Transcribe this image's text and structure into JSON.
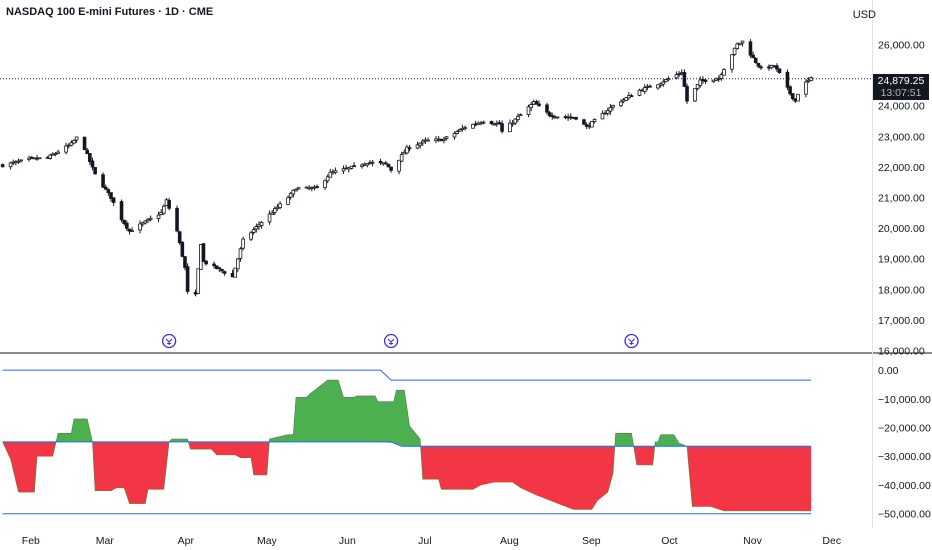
{
  "header": {
    "title": "NASDAQ 100 E-mini Futures · 1D · CME",
    "currency": "USD"
  },
  "last_price": {
    "value": "24,879.25",
    "countdown": "13:07:51"
  },
  "events": [
    {
      "date": "2025-03-28",
      "icon": "dividend-arrow-icon"
    },
    {
      "date": "2025-06-20",
      "icon": "dividend-arrow-icon"
    },
    {
      "date": "2025-09-19",
      "icon": "dividend-arrow-icon"
    }
  ],
  "chart_data": [
    {
      "type": "candlestick",
      "title": "NASDAQ 100 E-mini Futures · 1D · CME",
      "y_ticks": [
        "16,000.00",
        "17,000.00",
        "18,000.00",
        "19,000.00",
        "20,000.00",
        "21,000.00",
        "22,000.00",
        "23,000.00",
        "24,000.00",
        "26,000.00"
      ],
      "y_tick_values": [
        16000,
        17000,
        18000,
        19000,
        20000,
        21000,
        22000,
        23000,
        24000,
        26000
      ],
      "ylim": [
        15950,
        26800
      ],
      "x_ticks": [
        "Feb",
        "Mar",
        "Apr",
        "May",
        "Jun",
        "Jul",
        "Aug",
        "Sep",
        "Oct",
        "Nov",
        "Dec"
      ],
      "x_tick_dates": [
        "2025-02-01",
        "2025-03-01",
        "2025-04-01",
        "2025-05-01",
        "2025-06-01",
        "2025-07-01",
        "2025-08-01",
        "2025-09-01",
        "2025-10-01",
        "2025-11-01",
        "2025-12-01"
      ],
      "xlim": [
        "2025-01-23",
        "2025-12-19"
      ],
      "last_value": 24879.25,
      "close_path": [
        [
          "2025-01-24",
          22050
        ],
        [
          "2025-02-03",
          22250
        ],
        [
          "2025-02-10",
          22300
        ],
        [
          "2025-02-19",
          22750
        ],
        [
          "2025-02-21",
          22950
        ],
        [
          "2025-02-24",
          22600
        ],
        [
          "2025-02-28",
          21750
        ],
        [
          "2025-03-06",
          21000
        ],
        [
          "2025-03-10",
          20300
        ],
        [
          "2025-03-13",
          19900
        ],
        [
          "2025-03-19",
          20200
        ],
        [
          "2025-03-25",
          20500
        ],
        [
          "2025-03-27",
          20900
        ],
        [
          "2025-03-31",
          19900
        ],
        [
          "2025-04-03",
          18700
        ],
        [
          "2025-04-04",
          17900
        ],
        [
          "2025-04-07",
          17800
        ],
        [
          "2025-04-09",
          19500
        ],
        [
          "2025-04-10",
          18900
        ],
        [
          "2025-04-17",
          18600
        ],
        [
          "2025-04-21",
          18400
        ],
        [
          "2025-04-25",
          19600
        ],
        [
          "2025-05-02",
          20200
        ],
        [
          "2025-05-12",
          21000
        ],
        [
          "2025-05-15",
          21300
        ],
        [
          "2025-05-23",
          21300
        ],
        [
          "2025-05-28",
          21800
        ],
        [
          "2025-06-06",
          22000
        ],
        [
          "2025-06-11",
          22150
        ],
        [
          "2025-06-18",
          22100
        ],
        [
          "2025-06-20",
          21900
        ],
        [
          "2025-06-26",
          22600
        ],
        [
          "2025-07-03",
          22850
        ],
        [
          "2025-07-10",
          22900
        ],
        [
          "2025-07-18",
          23300
        ],
        [
          "2025-07-25",
          23500
        ],
        [
          "2025-07-31",
          23400
        ],
        [
          "2025-08-01",
          23150
        ],
        [
          "2025-08-08",
          23700
        ],
        [
          "2025-08-13",
          24100
        ],
        [
          "2025-08-19",
          23700
        ],
        [
          "2025-08-22",
          23650
        ],
        [
          "2025-08-29",
          23600
        ],
        [
          "2025-09-02",
          23300
        ],
        [
          "2025-09-12",
          24000
        ],
        [
          "2025-09-22",
          24500
        ],
        [
          "2025-09-30",
          24750
        ],
        [
          "2025-10-08",
          25100
        ],
        [
          "2025-10-10",
          24150
        ],
        [
          "2025-10-15",
          24800
        ],
        [
          "2025-10-22",
          24900
        ],
        [
          "2025-10-29",
          26000
        ],
        [
          "2025-10-31",
          26100
        ],
        [
          "2025-11-04",
          25550
        ],
        [
          "2025-11-07",
          25200
        ],
        [
          "2025-11-12",
          25300
        ],
        [
          "2025-11-14",
          25050
        ],
        [
          "2025-11-18",
          24400
        ],
        [
          "2025-11-20",
          24150
        ],
        [
          "2025-11-21",
          24400
        ],
        [
          "2025-11-24",
          24750
        ],
        [
          "2025-11-26",
          24879
        ]
      ]
    },
    {
      "type": "area",
      "y_ticks": [
        "0.00",
        "−10,000.00",
        "−20,000.00",
        "−30,000.00",
        "−40,000.00",
        "−50,000.00"
      ],
      "y_tick_values": [
        0,
        -10000,
        -20000,
        -30000,
        -40000,
        -50000
      ],
      "ylim": [
        -51500,
        3500
      ],
      "colors": {
        "positive": "#4caf50",
        "negative": "#f23645",
        "baseline": "#2962ff"
      },
      "upper_line": [
        [
          "2025-01-24",
          0
        ],
        [
          "2025-06-16",
          0
        ],
        [
          "2025-06-20",
          -3500
        ],
        [
          "2025-11-26",
          -3500
        ]
      ],
      "lower_line": [
        [
          "2025-01-24",
          -50000
        ],
        [
          "2025-11-26",
          -50000
        ]
      ],
      "baseline": [
        [
          "2025-01-24",
          -25000
        ],
        [
          "2025-06-20",
          -25000
        ],
        [
          "2025-06-24",
          -26500
        ],
        [
          "2025-11-26",
          -26500
        ]
      ],
      "values": [
        [
          "2025-01-24",
          -25000
        ],
        [
          "2025-01-27",
          -31000
        ],
        [
          "2025-01-30",
          -42500
        ],
        [
          "2025-02-05",
          -42500
        ],
        [
          "2025-02-06",
          -30000
        ],
        [
          "2025-02-12",
          -30000
        ],
        [
          "2025-02-14",
          -22000
        ],
        [
          "2025-02-19",
          -22000
        ],
        [
          "2025-02-20",
          -17000
        ],
        [
          "2025-02-25",
          -17000
        ],
        [
          "2025-02-27",
          -25000
        ],
        [
          "2025-02-28",
          -42000
        ],
        [
          "2025-03-06",
          -42000
        ],
        [
          "2025-03-08",
          -41000
        ],
        [
          "2025-03-11",
          -41000
        ],
        [
          "2025-03-13",
          -46500
        ],
        [
          "2025-03-19",
          -46500
        ],
        [
          "2025-03-20",
          -41500
        ],
        [
          "2025-03-26",
          -41500
        ],
        [
          "2025-03-28",
          -25000
        ],
        [
          "2025-03-29",
          -24000
        ],
        [
          "2025-04-04",
          -24000
        ],
        [
          "2025-04-05",
          -27500
        ],
        [
          "2025-04-13",
          -27500
        ],
        [
          "2025-04-15",
          -29500
        ],
        [
          "2025-04-22",
          -29500
        ],
        [
          "2025-04-24",
          -30500
        ],
        [
          "2025-04-28",
          -30500
        ],
        [
          "2025-04-29",
          -36500
        ],
        [
          "2025-05-04",
          -36500
        ],
        [
          "2025-05-05",
          -24000
        ],
        [
          "2025-05-12",
          -22500
        ],
        [
          "2025-05-14",
          -22500
        ],
        [
          "2025-05-15",
          -9500
        ],
        [
          "2025-05-19",
          -9500
        ],
        [
          "2025-05-20",
          -8500
        ],
        [
          "2025-05-27",
          -3500
        ],
        [
          "2025-05-31",
          -3500
        ],
        [
          "2025-06-02",
          -9500
        ],
        [
          "2025-06-06",
          -9500
        ],
        [
          "2025-06-07",
          -9000
        ],
        [
          "2025-06-14",
          -9000
        ],
        [
          "2025-06-15",
          -11000
        ],
        [
          "2025-06-21",
          -11000
        ],
        [
          "2025-06-22",
          -7000
        ],
        [
          "2025-06-25",
          -7000
        ],
        [
          "2025-06-27",
          -19500
        ],
        [
          "2025-07-01",
          -24000
        ],
        [
          "2025-07-02",
          -38000
        ],
        [
          "2025-07-08",
          -38000
        ],
        [
          "2025-07-09",
          -41500
        ],
        [
          "2025-07-21",
          -41500
        ],
        [
          "2025-07-24",
          -40000
        ],
        [
          "2025-07-29",
          -39000
        ],
        [
          "2025-08-05",
          -39000
        ],
        [
          "2025-08-08",
          -41000
        ],
        [
          "2025-08-14",
          -43500
        ],
        [
          "2025-08-21",
          -46000
        ],
        [
          "2025-08-28",
          -48500
        ],
        [
          "2025-09-04",
          -48500
        ],
        [
          "2025-09-06",
          -45500
        ],
        [
          "2025-09-10",
          -42500
        ],
        [
          "2025-09-12",
          -36000
        ],
        [
          "2025-09-13",
          -22000
        ],
        [
          "2025-09-19",
          -22000
        ],
        [
          "2025-09-21",
          -33000
        ],
        [
          "2025-09-27",
          -33000
        ],
        [
          "2025-09-28",
          -25000
        ],
        [
          "2025-09-29",
          -25000
        ],
        [
          "2025-09-30",
          -22500
        ],
        [
          "2025-10-05",
          -22500
        ],
        [
          "2025-10-07",
          -25500
        ],
        [
          "2025-10-10",
          -26500
        ],
        [
          "2025-10-12",
          -47500
        ],
        [
          "2025-10-19",
          -47500
        ],
        [
          "2025-10-24",
          -49000
        ],
        [
          "2025-11-26",
          -49000
        ]
      ]
    }
  ]
}
